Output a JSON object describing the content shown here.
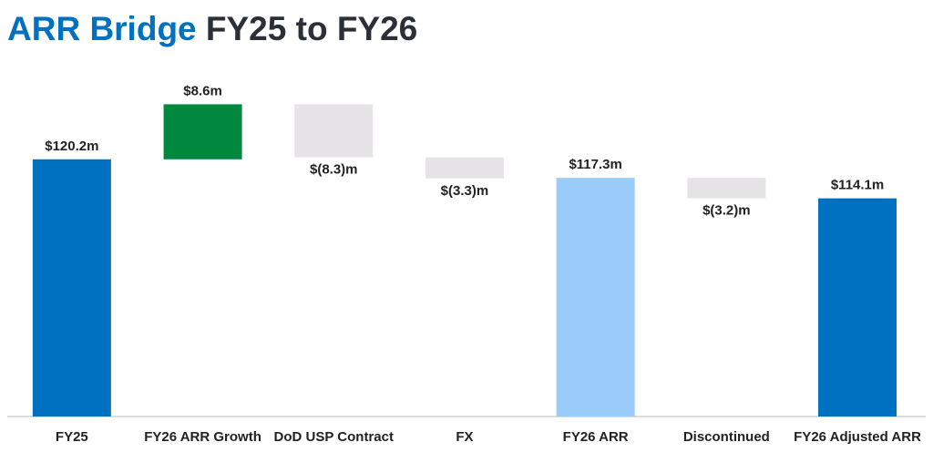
{
  "chart_data": {
    "type": "waterfall",
    "title_parts": [
      "ARR Bridge",
      "FY25 to FY26"
    ],
    "title_colors": [
      "#0070c0",
      "#2b2f38"
    ],
    "categories": [
      "FY25",
      "FY26 ARR Growth",
      "DoD USP Contract",
      "FX",
      "FY26 ARR",
      "Discontinued",
      "FY26 Adjusted ARR"
    ],
    "values": [
      120.2,
      8.6,
      -8.3,
      -3.3,
      117.3,
      -3.2,
      114.1
    ],
    "value_labels": [
      "$120.2m",
      "$8.6m",
      "$(8.3)m",
      "$(3.3)m",
      "$117.3m",
      "$(3.2)m",
      "$114.1m"
    ],
    "total": [
      true,
      false,
      false,
      false,
      true,
      false,
      true
    ],
    "colors": [
      "#0070c0",
      "#00893e",
      "#e6e4e6",
      "#e6e4e6",
      "#99ccf8",
      "#e6e4e6",
      "#0070c0"
    ],
    "ylim": [
      80,
      130
    ]
  }
}
